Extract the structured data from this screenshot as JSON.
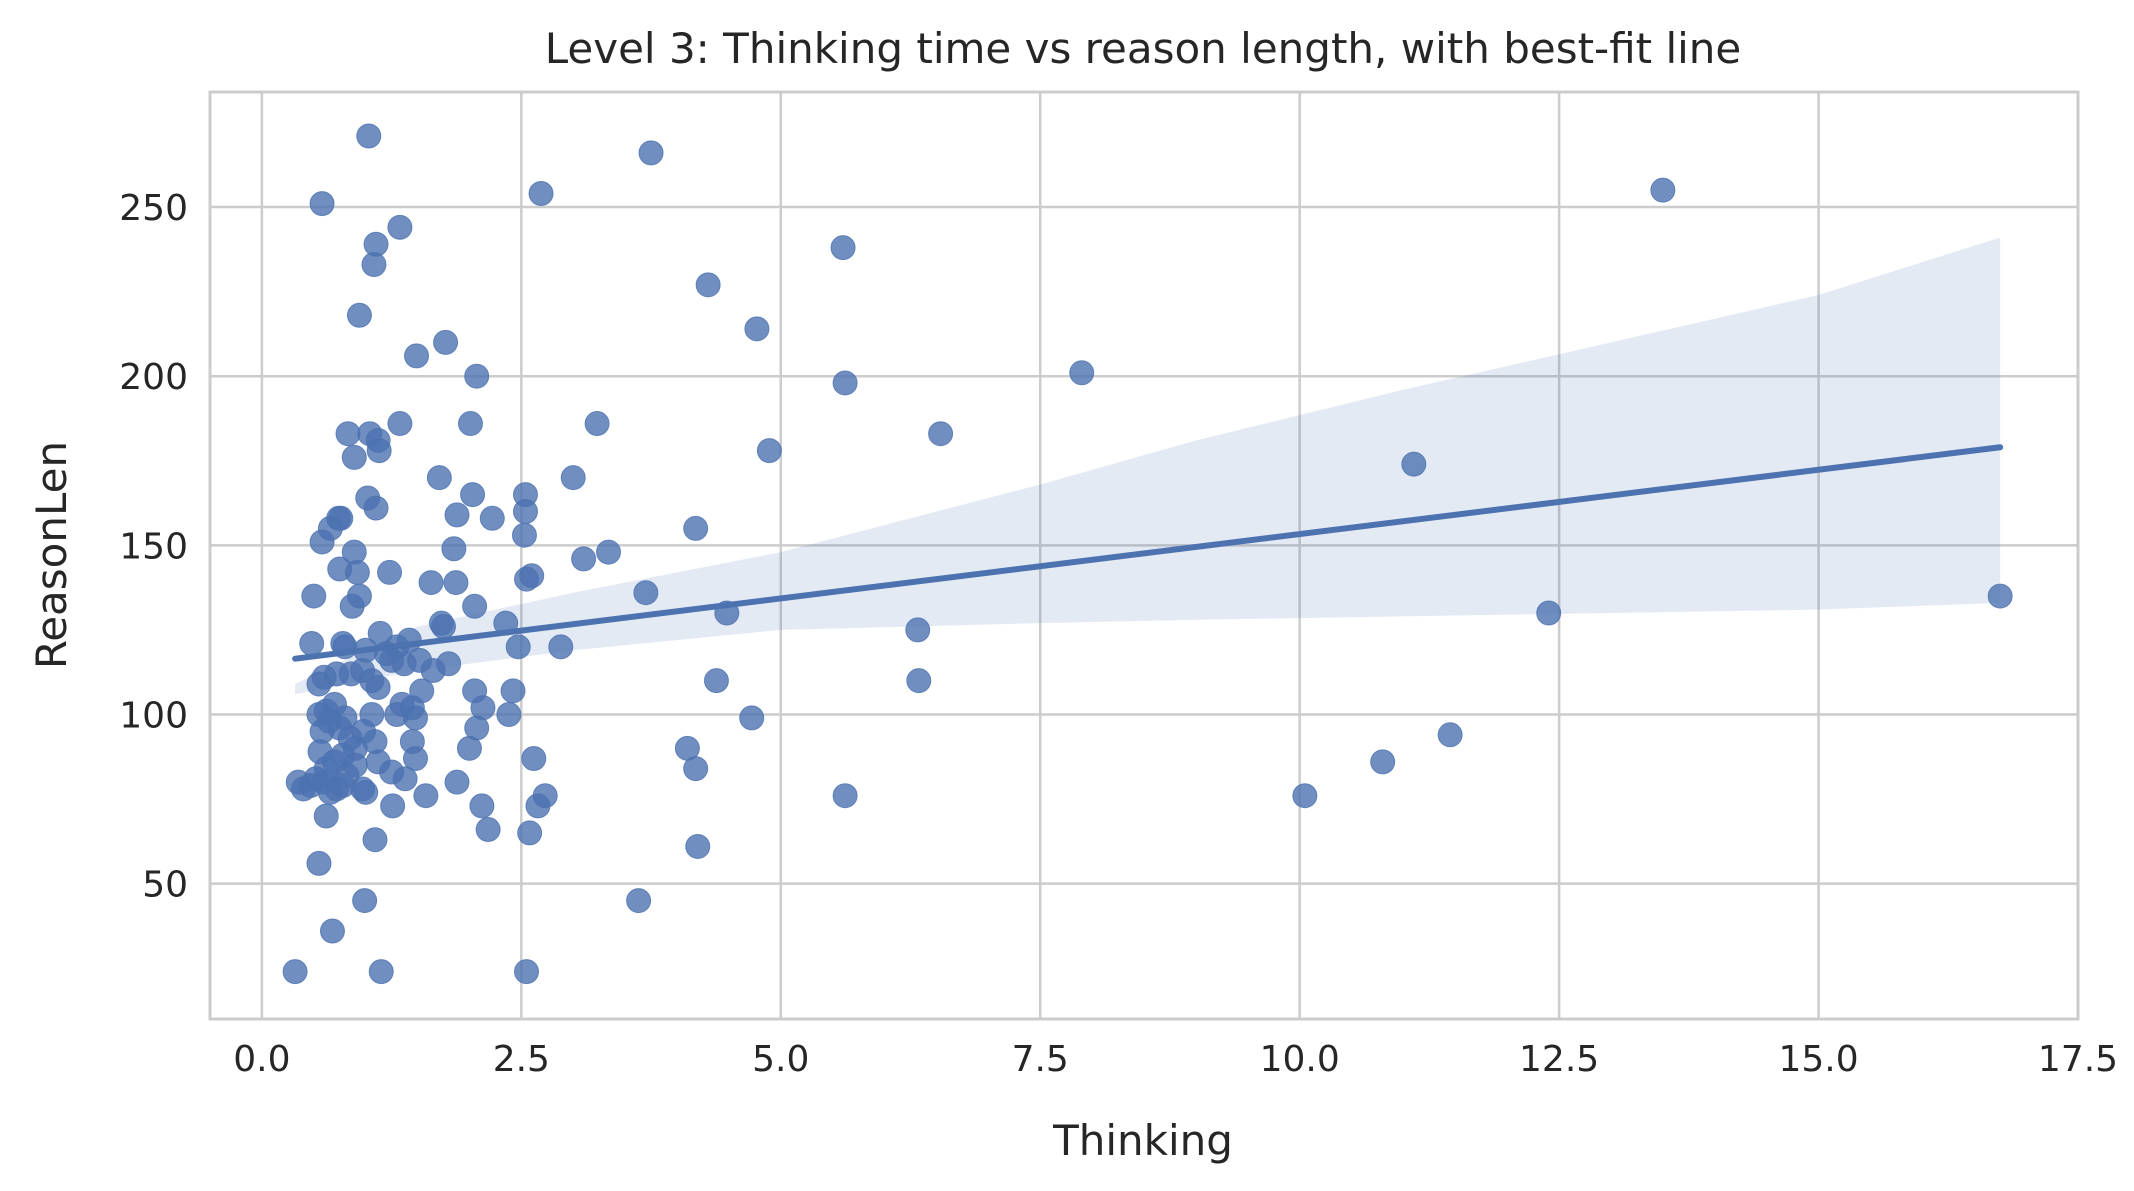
{
  "chart_data": {
    "type": "scatter",
    "title": "Level 3: Thinking time vs reason length, with best-fit line",
    "xlabel": "Thinking",
    "ylabel": "ReasonLen",
    "xlim": [
      -0.5,
      17.5
    ],
    "ylim": [
      10,
      284
    ],
    "xticks": [
      0.0,
      2.5,
      5.0,
      7.5,
      10.0,
      12.5,
      15.0,
      17.5
    ],
    "xtick_labels": [
      "0.0",
      "2.5",
      "5.0",
      "7.5",
      "10.0",
      "12.5",
      "15.0",
      "17.5"
    ],
    "yticks": [
      50,
      100,
      150,
      200,
      250
    ],
    "ytick_labels": [
      "50",
      "100",
      "150",
      "200",
      "250"
    ],
    "grid": true,
    "colors": {
      "points": "#4c72b0",
      "line": "#4c72b0",
      "band": "#4c72b0",
      "grid": "#cccccc"
    },
    "series": [
      {
        "kind": "scatter",
        "points": [
          [
            0.32,
            24
          ],
          [
            1.03,
            271
          ],
          [
            0.58,
            251
          ],
          [
            1.33,
            244
          ],
          [
            1.1,
            239
          ],
          [
            1.08,
            233
          ],
          [
            0.94,
            218
          ],
          [
            1.77,
            210
          ],
          [
            1.49,
            206
          ],
          [
            2.07,
            200
          ],
          [
            3.75,
            266
          ],
          [
            2.69,
            254
          ],
          [
            5.6,
            238
          ],
          [
            4.3,
            227
          ],
          [
            4.77,
            214
          ],
          [
            5.62,
            198
          ],
          [
            7.9,
            201
          ],
          [
            13.5,
            255
          ],
          [
            0.83,
            183
          ],
          [
            0.89,
            176
          ],
          [
            1.04,
            183
          ],
          [
            1.12,
            181
          ],
          [
            1.13,
            178
          ],
          [
            1.33,
            186
          ],
          [
            2.01,
            186
          ],
          [
            3.23,
            186
          ],
          [
            4.89,
            178
          ],
          [
            6.54,
            183
          ],
          [
            11.1,
            174
          ],
          [
            1.02,
            164
          ],
          [
            1.1,
            161
          ],
          [
            1.71,
            170
          ],
          [
            2.03,
            165
          ],
          [
            1.88,
            159
          ],
          [
            2.22,
            158
          ],
          [
            2.54,
            165
          ],
          [
            2.54,
            160
          ],
          [
            3.0,
            170
          ],
          [
            0.76,
            158
          ],
          [
            0.74,
            158
          ],
          [
            0.58,
            151
          ],
          [
            0.66,
            155
          ],
          [
            0.89,
            148
          ],
          [
            0.92,
            142
          ],
          [
            0.75,
            143
          ],
          [
            0.5,
            135
          ],
          [
            0.94,
            135
          ],
          [
            0.87,
            132
          ],
          [
            1.23,
            142
          ],
          [
            1.63,
            139
          ],
          [
            1.85,
            149
          ],
          [
            1.87,
            139
          ],
          [
            2.05,
            132
          ],
          [
            2.53,
            153
          ],
          [
            2.55,
            140
          ],
          [
            2.6,
            141
          ],
          [
            3.1,
            146
          ],
          [
            3.34,
            148
          ],
          [
            3.7,
            136
          ],
          [
            4.18,
            155
          ],
          [
            4.48,
            130
          ],
          [
            6.32,
            125
          ],
          [
            12.4,
            130
          ],
          [
            16.75,
            135
          ],
          [
            0.48,
            121
          ],
          [
            0.78,
            121
          ],
          [
            0.8,
            120
          ],
          [
            1.0,
            119
          ],
          [
            1.14,
            124
          ],
          [
            1.3,
            120
          ],
          [
            1.42,
            122
          ],
          [
            1.73,
            127
          ],
          [
            1.75,
            126
          ],
          [
            2.35,
            127
          ],
          [
            2.47,
            120
          ],
          [
            2.88,
            120
          ],
          [
            0.6,
            111
          ],
          [
            0.55,
            109
          ],
          [
            0.72,
            112
          ],
          [
            0.86,
            112
          ],
          [
            0.97,
            113
          ],
          [
            1.06,
            110
          ],
          [
            1.12,
            108
          ],
          [
            1.25,
            116
          ],
          [
            1.37,
            115
          ],
          [
            1.52,
            116
          ],
          [
            1.65,
            113
          ],
          [
            1.8,
            115
          ],
          [
            1.54,
            107
          ],
          [
            1.35,
            103
          ],
          [
            1.2,
            118
          ],
          [
            2.05,
            107
          ],
          [
            2.13,
            102
          ],
          [
            2.42,
            107
          ],
          [
            2.38,
            100
          ],
          [
            4.38,
            110
          ],
          [
            6.33,
            110
          ],
          [
            4.72,
            99
          ],
          [
            0.55,
            100
          ],
          [
            0.58,
            95
          ],
          [
            0.62,
            101
          ],
          [
            0.65,
            98
          ],
          [
            0.7,
            103
          ],
          [
            0.75,
            96
          ],
          [
            0.8,
            99
          ],
          [
            0.85,
            93
          ],
          [
            0.9,
            90
          ],
          [
            0.98,
            95
          ],
          [
            1.06,
            100
          ],
          [
            1.09,
            92
          ],
          [
            1.3,
            100
          ],
          [
            1.45,
            102
          ],
          [
            1.48,
            99
          ],
          [
            1.45,
            92
          ],
          [
            1.48,
            87
          ],
          [
            2.07,
            96
          ],
          [
            2.0,
            90
          ],
          [
            2.62,
            87
          ],
          [
            4.1,
            90
          ],
          [
            4.18,
            84
          ],
          [
            0.56,
            89
          ],
          [
            0.62,
            84
          ],
          [
            0.7,
            86
          ],
          [
            0.78,
            88
          ],
          [
            0.82,
            82
          ],
          [
            0.9,
            85
          ],
          [
            1.12,
            86
          ],
          [
            1.25,
            83
          ],
          [
            1.38,
            81
          ],
          [
            0.35,
            80
          ],
          [
            0.4,
            78
          ],
          [
            0.47,
            79
          ],
          [
            0.52,
            81
          ],
          [
            0.6,
            80
          ],
          [
            0.66,
            77
          ],
          [
            0.72,
            78
          ],
          [
            0.78,
            79
          ],
          [
            0.97,
            78
          ],
          [
            1.0,
            77
          ],
          [
            1.26,
            73
          ],
          [
            1.58,
            76
          ],
          [
            1.88,
            80
          ],
          [
            2.12,
            73
          ],
          [
            2.18,
            66
          ],
          [
            2.66,
            73
          ],
          [
            2.73,
            76
          ],
          [
            2.58,
            65
          ],
          [
            5.62,
            76
          ],
          [
            10.05,
            76
          ],
          [
            10.8,
            86
          ],
          [
            11.45,
            94
          ],
          [
            0.62,
            70
          ],
          [
            1.09,
            63
          ],
          [
            0.55,
            56
          ],
          [
            4.2,
            61
          ],
          [
            0.99,
            45
          ],
          [
            3.63,
            45
          ],
          [
            0.68,
            36
          ],
          [
            1.15,
            24
          ],
          [
            2.55,
            24
          ]
        ]
      },
      {
        "kind": "regression",
        "name": "best-fit line",
        "line": [
          [
            0.32,
            116.5
          ],
          [
            16.75,
            179
          ]
        ],
        "ci_upper": [
          [
            0.32,
            109
          ],
          [
            1.5,
            126
          ],
          [
            3.0,
            136
          ],
          [
            5.0,
            148
          ],
          [
            7.5,
            168
          ],
          [
            9.0,
            181
          ],
          [
            11.0,
            196
          ],
          [
            13.0,
            210
          ],
          [
            15.0,
            224
          ],
          [
            16.75,
            241
          ]
        ],
        "ci_lower": [
          [
            0.32,
            106
          ],
          [
            1.5,
            113
          ],
          [
            3.0,
            119
          ],
          [
            5.0,
            125
          ],
          [
            7.5,
            127
          ],
          [
            9.0,
            128
          ],
          [
            11.0,
            129
          ],
          [
            13.0,
            130
          ],
          [
            15.0,
            131
          ],
          [
            16.75,
            133
          ]
        ]
      }
    ]
  }
}
